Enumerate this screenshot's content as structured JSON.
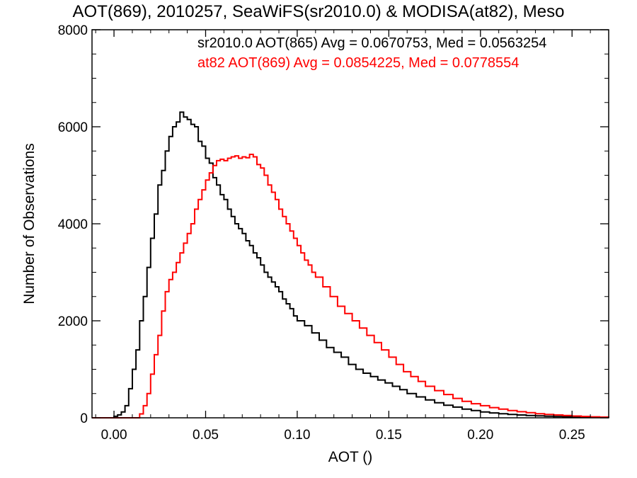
{
  "chart_data": {
    "type": "line",
    "title": "AOT(869), 2010257, SeaWiFS(sr2010.0) & MODISA(at82), Meso",
    "xlabel": "AOT ()",
    "ylabel": "Number of Observations",
    "xlim": [
      -0.012,
      0.27
    ],
    "ylim": [
      0,
      8000
    ],
    "xticks": [
      0.0,
      0.05,
      0.1,
      0.15,
      0.2,
      0.25
    ],
    "xtick_labels": [
      "0.00",
      "0.05",
      "0.10",
      "0.15",
      "0.20",
      "0.25"
    ],
    "yticks": [
      0,
      2000,
      4000,
      6000,
      8000
    ],
    "ytick_labels": [
      "0",
      "2000",
      "4000",
      "6000",
      "8000"
    ],
    "grid": false,
    "series": [
      {
        "annotation": "sr2010.0 AOT(865) Avg = 0.0670753, Med = 0.0563254",
        "color": "#000000",
        "points": [
          [
            -0.012,
            0
          ],
          [
            -0.002,
            0
          ],
          [
            0.0,
            30
          ],
          [
            0.002,
            60
          ],
          [
            0.004,
            120
          ],
          [
            0.006,
            250
          ],
          [
            0.008,
            600
          ],
          [
            0.01,
            1000
          ],
          [
            0.012,
            1400
          ],
          [
            0.014,
            2000
          ],
          [
            0.016,
            2500
          ],
          [
            0.018,
            3100
          ],
          [
            0.02,
            3700
          ],
          [
            0.022,
            4200
          ],
          [
            0.024,
            4800
          ],
          [
            0.026,
            5100
          ],
          [
            0.028,
            5500
          ],
          [
            0.03,
            5800
          ],
          [
            0.032,
            6000
          ],
          [
            0.034,
            6100
          ],
          [
            0.036,
            6300
          ],
          [
            0.038,
            6200
          ],
          [
            0.04,
            6150
          ],
          [
            0.042,
            6050
          ],
          [
            0.044,
            6000
          ],
          [
            0.046,
            5700
          ],
          [
            0.048,
            5600
          ],
          [
            0.05,
            5350
          ],
          [
            0.052,
            5250
          ],
          [
            0.054,
            4950
          ],
          [
            0.056,
            4800
          ],
          [
            0.058,
            4600
          ],
          [
            0.06,
            4500
          ],
          [
            0.062,
            4300
          ],
          [
            0.064,
            4150
          ],
          [
            0.066,
            4000
          ],
          [
            0.068,
            3900
          ],
          [
            0.07,
            3800
          ],
          [
            0.072,
            3650
          ],
          [
            0.074,
            3550
          ],
          [
            0.076,
            3400
          ],
          [
            0.078,
            3300
          ],
          [
            0.08,
            3150
          ],
          [
            0.082,
            3000
          ],
          [
            0.084,
            2900
          ],
          [
            0.086,
            2800
          ],
          [
            0.088,
            2700
          ],
          [
            0.09,
            2600
          ],
          [
            0.092,
            2450
          ],
          [
            0.094,
            2350
          ],
          [
            0.096,
            2250
          ],
          [
            0.098,
            2100
          ],
          [
            0.1,
            2000
          ],
          [
            0.104,
            1900
          ],
          [
            0.108,
            1750
          ],
          [
            0.112,
            1600
          ],
          [
            0.116,
            1450
          ],
          [
            0.12,
            1350
          ],
          [
            0.124,
            1250
          ],
          [
            0.128,
            1100
          ],
          [
            0.132,
            1000
          ],
          [
            0.136,
            920
          ],
          [
            0.14,
            850
          ],
          [
            0.144,
            780
          ],
          [
            0.148,
            720
          ],
          [
            0.152,
            650
          ],
          [
            0.156,
            580
          ],
          [
            0.16,
            500
          ],
          [
            0.165,
            430
          ],
          [
            0.17,
            370
          ],
          [
            0.175,
            310
          ],
          [
            0.18,
            260
          ],
          [
            0.185,
            220
          ],
          [
            0.19,
            180
          ],
          [
            0.195,
            150
          ],
          [
            0.2,
            120
          ],
          [
            0.205,
            100
          ],
          [
            0.21,
            85
          ],
          [
            0.215,
            70
          ],
          [
            0.22,
            58
          ],
          [
            0.225,
            48
          ],
          [
            0.23,
            40
          ],
          [
            0.235,
            33
          ],
          [
            0.24,
            27
          ],
          [
            0.245,
            22
          ],
          [
            0.25,
            18
          ],
          [
            0.255,
            14
          ],
          [
            0.26,
            10
          ],
          [
            0.265,
            7
          ],
          [
            0.27,
            5
          ]
        ]
      },
      {
        "annotation": "at82 AOT(869) Avg = 0.0854225, Med = 0.0778554",
        "color": "#ff0000",
        "points": [
          [
            -0.012,
            0
          ],
          [
            0.012,
            0
          ],
          [
            0.014,
            80
          ],
          [
            0.016,
            250
          ],
          [
            0.018,
            500
          ],
          [
            0.02,
            900
          ],
          [
            0.022,
            1300
          ],
          [
            0.024,
            1700
          ],
          [
            0.026,
            2200
          ],
          [
            0.028,
            2600
          ],
          [
            0.03,
            2850
          ],
          [
            0.032,
            3000
          ],
          [
            0.034,
            3200
          ],
          [
            0.036,
            3400
          ],
          [
            0.038,
            3600
          ],
          [
            0.04,
            3800
          ],
          [
            0.042,
            4000
          ],
          [
            0.044,
            4300
          ],
          [
            0.046,
            4500
          ],
          [
            0.048,
            4700
          ],
          [
            0.05,
            4900
          ],
          [
            0.052,
            5050
          ],
          [
            0.054,
            5200
          ],
          [
            0.056,
            5300
          ],
          [
            0.058,
            5330
          ],
          [
            0.06,
            5300
          ],
          [
            0.062,
            5350
          ],
          [
            0.064,
            5380
          ],
          [
            0.066,
            5400
          ],
          [
            0.068,
            5350
          ],
          [
            0.07,
            5380
          ],
          [
            0.072,
            5360
          ],
          [
            0.074,
            5430
          ],
          [
            0.076,
            5380
          ],
          [
            0.078,
            5220
          ],
          [
            0.08,
            5150
          ],
          [
            0.082,
            5000
          ],
          [
            0.084,
            4800
          ],
          [
            0.086,
            4650
          ],
          [
            0.088,
            4500
          ],
          [
            0.09,
            4300
          ],
          [
            0.092,
            4150
          ],
          [
            0.094,
            4000
          ],
          [
            0.096,
            3850
          ],
          [
            0.098,
            3700
          ],
          [
            0.1,
            3550
          ],
          [
            0.102,
            3400
          ],
          [
            0.104,
            3250
          ],
          [
            0.106,
            3150
          ],
          [
            0.108,
            3000
          ],
          [
            0.11,
            2900
          ],
          [
            0.114,
            2700
          ],
          [
            0.118,
            2500
          ],
          [
            0.122,
            2300
          ],
          [
            0.126,
            2150
          ],
          [
            0.13,
            2000
          ],
          [
            0.134,
            1850
          ],
          [
            0.138,
            1700
          ],
          [
            0.142,
            1550
          ],
          [
            0.146,
            1400
          ],
          [
            0.15,
            1250
          ],
          [
            0.154,
            1100
          ],
          [
            0.158,
            950
          ],
          [
            0.162,
            850
          ],
          [
            0.166,
            750
          ],
          [
            0.17,
            650
          ],
          [
            0.175,
            560
          ],
          [
            0.18,
            480
          ],
          [
            0.185,
            400
          ],
          [
            0.19,
            340
          ],
          [
            0.195,
            290
          ],
          [
            0.2,
            250
          ],
          [
            0.205,
            210
          ],
          [
            0.21,
            180
          ],
          [
            0.215,
            150
          ],
          [
            0.22,
            125
          ],
          [
            0.225,
            105
          ],
          [
            0.23,
            85
          ],
          [
            0.235,
            70
          ],
          [
            0.24,
            58
          ],
          [
            0.245,
            46
          ],
          [
            0.25,
            36
          ],
          [
            0.255,
            28
          ],
          [
            0.26,
            20
          ],
          [
            0.265,
            14
          ],
          [
            0.27,
            10
          ]
        ]
      }
    ]
  }
}
